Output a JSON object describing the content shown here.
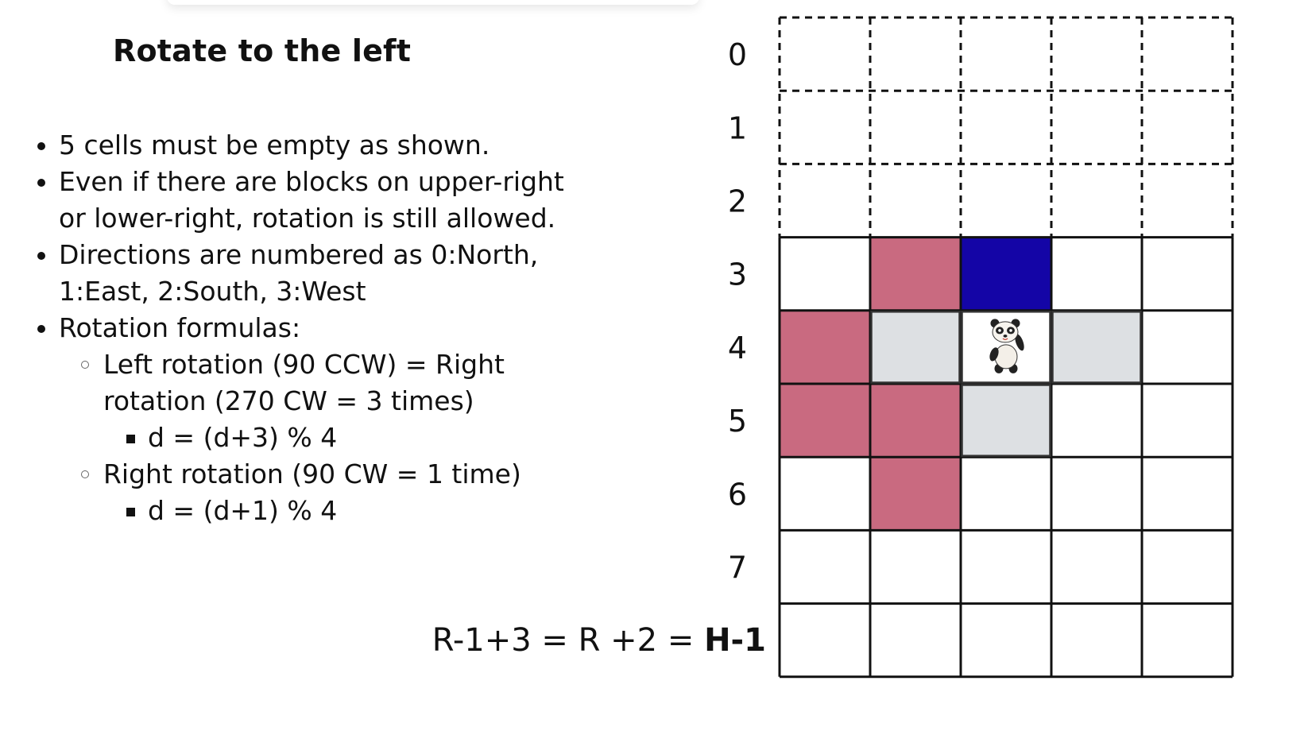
{
  "title": "Rotate to the left",
  "bullets": {
    "b1": "5 cells must be empty as shown.",
    "b2a": "Even if there are blocks on upper-right",
    "b2b": "or lower-right, rotation is still allowed.",
    "b3a": "Directions are numbered as 0:North,",
    "b3b": "1:East, 2:South, 3:West",
    "b4": "Rotation formulas:",
    "s1a": "Left rotation (90 CCW) = Right",
    "s1b": "rotation (270 CW = 3 times)",
    "ss1": "d = (d+3) % 4",
    "s2": "Right rotation (90 CW = 1 time)",
    "ss2": "d = (d+1) % 4"
  },
  "formula": {
    "text": "R-1+3 = R +2 = ",
    "bold": "H-1"
  },
  "grid": {
    "row_labels": [
      "0",
      "1",
      "2",
      "3",
      "4",
      "5",
      "6",
      "7"
    ],
    "dashed_rows": 3,
    "total_rows": 9,
    "cols": 5,
    "pink_cells": [
      [
        3,
        1
      ],
      [
        4,
        0
      ],
      [
        5,
        0
      ],
      [
        5,
        1
      ],
      [
        6,
        1
      ]
    ],
    "blue_cells": [
      [
        3,
        2
      ]
    ],
    "gray_cells": [
      [
        4,
        1
      ],
      [
        4,
        3
      ],
      [
        5,
        2
      ]
    ],
    "bold_cells": [
      [
        4,
        1
      ],
      [
        4,
        2
      ],
      [
        4,
        3
      ],
      [
        5,
        2
      ]
    ],
    "panda_cell": [
      4,
      2
    ],
    "colors": {
      "pink": "#c96a80",
      "blue": "#1405a6",
      "gray": "#dde0e3",
      "line": "#111111"
    },
    "panda_icon": "panda-icon"
  }
}
